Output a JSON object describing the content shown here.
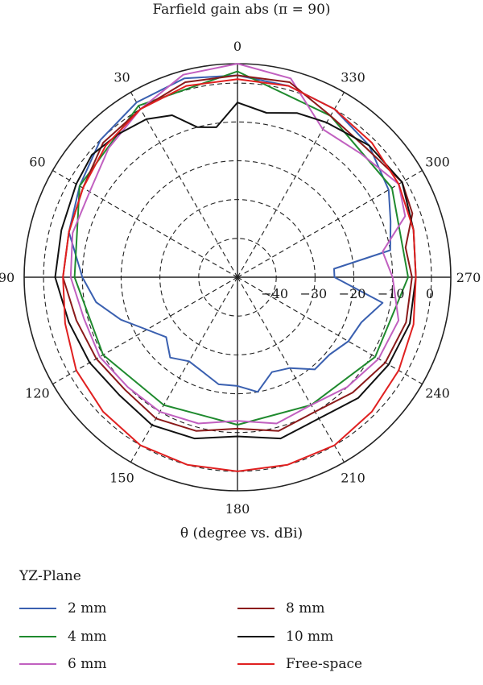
{
  "chart_data": {
    "type": "polar-line",
    "title": "Farfield gain abs (π = 90)",
    "xlabel": "θ (degree vs. dBi)",
    "angle_ticks": [
      0,
      30,
      60,
      90,
      120,
      150,
      180,
      210,
      240,
      270,
      300,
      330
    ],
    "radial_ticks": [
      -40,
      -30,
      -20,
      -10,
      0
    ],
    "rlim": [
      -50,
      5
    ],
    "grid": true,
    "legend_title": "YZ-Plane",
    "legend_position": "bottom",
    "series": [
      {
        "name": "2 mm",
        "color": "#3a60b0",
        "theta": [
          0,
          15,
          30,
          45,
          60,
          75,
          90,
          100,
          110,
          120,
          130,
          140,
          150,
          160,
          170,
          180,
          190,
          200,
          210,
          220,
          230,
          240,
          250,
          260,
          270,
          275,
          280,
          290,
          300,
          315,
          330,
          345
        ],
        "r": [
          2,
          3,
          2,
          0,
          -3,
          -5,
          -10,
          -13,
          -18,
          -23,
          -26,
          -23,
          -25,
          -24,
          -22,
          -22,
          -20,
          -24,
          -23,
          -19,
          -19,
          -17,
          -16,
          -12,
          -25,
          -25,
          -10,
          -8,
          -5,
          -2,
          0,
          1
        ]
      },
      {
        "name": "4 mm",
        "color": "#1f8a2e",
        "theta": [
          0,
          30,
          60,
          90,
          120,
          150,
          180,
          210,
          240,
          270,
          300,
          330
        ],
        "r": [
          3,
          1,
          -3,
          -8,
          -10,
          -12,
          -12,
          -12,
          -9,
          -6,
          -4,
          -2
        ]
      },
      {
        "name": "6 mm",
        "color": "#c160c0",
        "theta": [
          0,
          15,
          30,
          45,
          60,
          75,
          90,
          105,
          120,
          135,
          150,
          165,
          180,
          195,
          210,
          225,
          240,
          255,
          270,
          280,
          290,
          300,
          315,
          330,
          345
        ],
        "r": [
          5,
          4,
          0,
          -3,
          -6,
          -6,
          -7,
          -9,
          -9,
          -10,
          -10,
          -11,
          -13,
          -11,
          -12,
          -10,
          -8,
          -7,
          -10,
          -12,
          -4,
          -2,
          -5,
          -6,
          3
        ]
      },
      {
        "name": "8 mm",
        "color": "#8b1a1a",
        "theta": [
          0,
          15,
          30,
          45,
          60,
          75,
          90,
          105,
          120,
          135,
          150,
          165,
          180,
          195,
          210,
          225,
          240,
          255,
          270,
          280,
          290,
          300,
          315,
          330,
          345
        ],
        "r": [
          2,
          2,
          0,
          -1,
          -4,
          -5,
          -5,
          -7,
          -8,
          -9,
          -8,
          -9,
          -11,
          -9,
          -10,
          -8,
          -6,
          -5,
          -5,
          -6,
          -2,
          -1,
          -3,
          -2,
          2
        ]
      },
      {
        "name": "10 mm",
        "color": "#111111",
        "theta": [
          0,
          8,
          15,
          22,
          30,
          40,
          50,
          60,
          75,
          90,
          105,
          120,
          135,
          150,
          165,
          180,
          195,
          210,
          225,
          240,
          255,
          270,
          285,
          300,
          315,
          330,
          340,
          350
        ],
        "r": [
          -5,
          -11,
          -10,
          -5,
          -3,
          -2,
          -1,
          -2,
          -3,
          -3,
          -5,
          -6,
          -7,
          -6,
          -7,
          -9,
          -7,
          -8,
          -6,
          -5,
          -4,
          -4,
          -3,
          -1,
          -2,
          -4,
          -5,
          -7
        ]
      },
      {
        "name": "Free-space",
        "color": "#e02020",
        "theta": [
          0,
          15,
          30,
          45,
          60,
          75,
          90,
          105,
          120,
          135,
          150,
          165,
          180,
          195,
          210,
          225,
          240,
          255,
          270,
          285,
          300,
          315,
          330,
          345
        ],
        "r": [
          1,
          1,
          0,
          -2,
          -4,
          -5,
          -5,
          -4,
          -2,
          -1,
          0,
          0,
          0,
          0,
          0,
          -1,
          -2,
          -3,
          -4,
          -3,
          -2,
          -1,
          0,
          1
        ]
      }
    ]
  }
}
